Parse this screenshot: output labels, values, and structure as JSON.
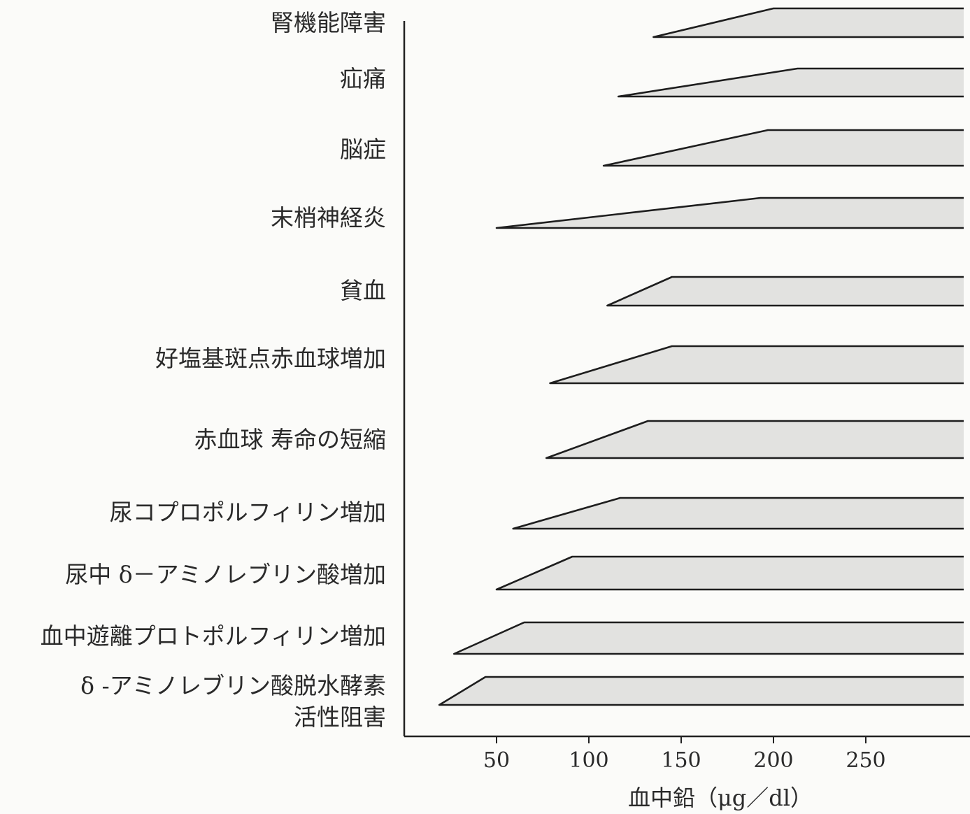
{
  "chart_data": {
    "type": "area",
    "xlabel": "血中鉛（μg／dl）",
    "ylabel": "",
    "x_ticks": [
      50,
      100,
      150,
      200,
      250
    ],
    "xlim": [
      0,
      300
    ],
    "categories": [
      "腎機能障害",
      "疝痛",
      "脳症",
      "末梢神経炎",
      "貧血",
      "好塩基斑点赤血球増加",
      "赤血球 寿命の短縮",
      "尿コプロポルフィリン増加",
      "尿中 δ－アミノレブリン酸増加",
      "血中遊離プロトポルフィリン増加",
      "δ -アミノレブリン酸脱水酵素\n活性阻害"
    ],
    "series": [
      {
        "onset": [
          135,
          200
        ],
        "max": 300
      },
      {
        "onset": [
          116,
          213
        ],
        "max": 300
      },
      {
        "onset": [
          108,
          197
        ],
        "max": 300
      },
      {
        "onset": [
          50,
          193
        ],
        "max": 300
      },
      {
        "onset": [
          110,
          145
        ],
        "max": 300
      },
      {
        "onset": [
          79,
          145
        ],
        "max": 300
      },
      {
        "onset": [
          77,
          132
        ],
        "max": 300
      },
      {
        "onset": [
          59,
          117
        ],
        "max": 300
      },
      {
        "onset": [
          50,
          91
        ],
        "max": 300
      },
      {
        "onset": [
          27,
          65
        ],
        "max": 300
      },
      {
        "onset": [
          19,
          44
        ],
        "max": 300
      }
    ]
  },
  "colors": {
    "fill": "#e2e2e0",
    "line": "#1e1e1e",
    "background": "#fbfbf9"
  }
}
